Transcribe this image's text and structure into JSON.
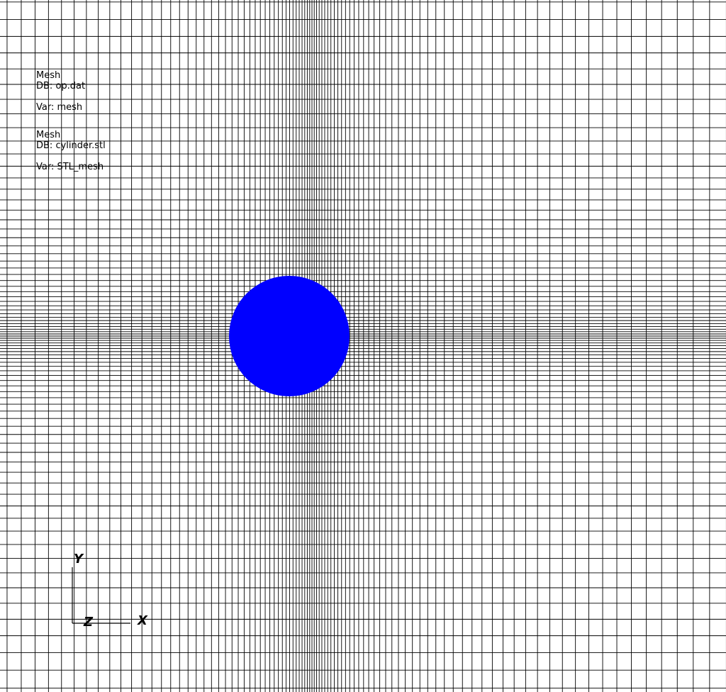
{
  "legend": [
    {
      "plot_type": "Mesh",
      "db": "DB: op.dat",
      "var": "Var: mesh"
    },
    {
      "plot_type": "Mesh",
      "db": "DB: cylinder.stl",
      "var": "Var: STL_mesh"
    }
  ],
  "axes": {
    "x": "X",
    "y": "Y",
    "z": "Z"
  },
  "colors": {
    "background": "#ffffff",
    "mesh_lines": "#000000",
    "cylinder": "#0000ff"
  }
}
